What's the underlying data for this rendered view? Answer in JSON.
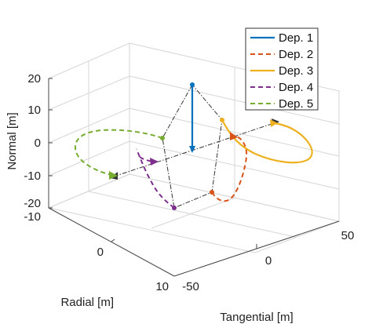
{
  "chart_data": {
    "type": "line3d",
    "xlabel": "Tangential [m]",
    "ylabel": "Radial [m]",
    "zlabel": "Normal [m]",
    "xlim": [
      -50,
      50
    ],
    "ylim": [
      -10,
      10
    ],
    "zlim": [
      -20,
      20
    ],
    "xticks": [
      "-50",
      "0",
      "50"
    ],
    "yticks": [
      "-10",
      "0",
      "10"
    ],
    "zticks": [
      "-20",
      "-10",
      "0",
      "10",
      "20"
    ],
    "grid": true,
    "legend_position": "top-right",
    "colors": {
      "dep1": "#0072BD",
      "dep2": "#D95319",
      "dep3": "#EDB120",
      "dep4": "#7E2F8E",
      "dep5": "#77AC30",
      "reference": "#333333"
    },
    "series": [
      {
        "name": "Dep. 1",
        "style": "solid",
        "key": "dep1"
      },
      {
        "name": "Dep. 2",
        "style": "dashed",
        "key": "dep2"
      },
      {
        "name": "Dep. 3",
        "style": "solid",
        "key": "dep3"
      },
      {
        "name": "Dep. 4",
        "style": "dashed",
        "key": "dep4"
      },
      {
        "name": "Dep. 5",
        "style": "dashed",
        "key": "dep5"
      }
    ]
  }
}
